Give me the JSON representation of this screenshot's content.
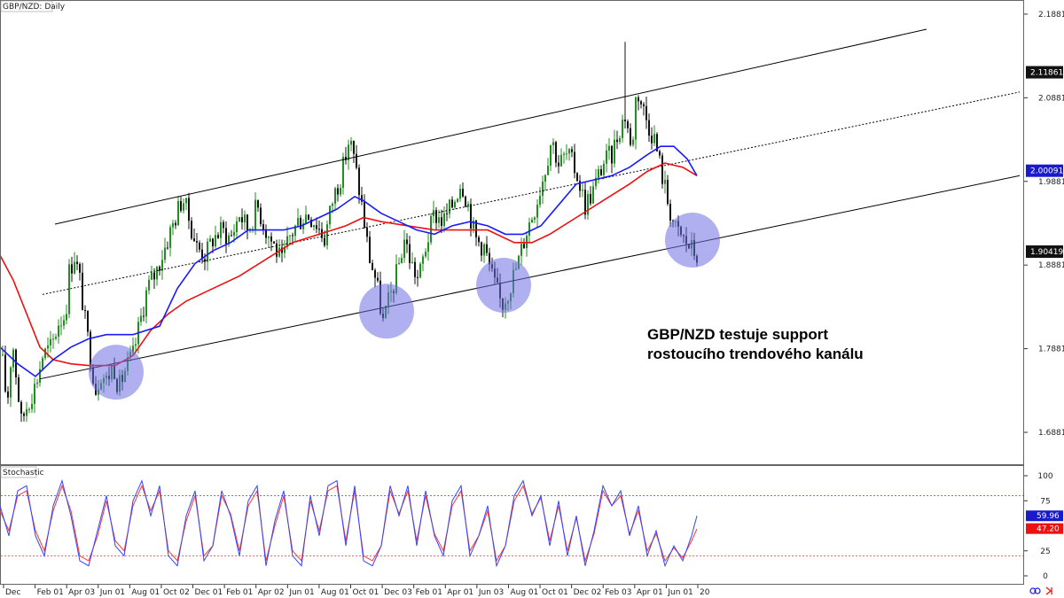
{
  "chart_data": {
    "type": "candlestick",
    "title": "GBP/NZD: Daily",
    "annotation": [
      "GBP/NZD testuje support",
      "rostoucího trendového kanálu"
    ],
    "colors": {
      "up": "#1f8f1f",
      "down": "#111111",
      "ma_fast": "#1a1aff",
      "ma_slow": "#ee1111",
      "channel": "#000000",
      "highlight": "#6f6fe6",
      "stoch_k": "#3344ff",
      "stoch_d": "#ff3333",
      "badge_blue": "#1a1acc",
      "badge_dark": "#111111",
      "badge_red": "#ee1111"
    },
    "x_axis": {
      "labels": [
        "Dec",
        "Feb 01",
        "Apr 03",
        "Jun 01",
        "Aug 01",
        "Oct 02",
        "Dec 01",
        "Feb 01",
        "Apr 02",
        "Jun 01",
        "Aug 01",
        "Oct 01",
        "Dec 03",
        "Feb 01",
        "Apr 01",
        "Jun 03",
        "Aug 01",
        "Oct 01",
        "Dec 02",
        "Feb 03",
        "Apr 01",
        "Jun 01",
        "20"
      ]
    },
    "price_axis": {
      "ylim": [
        1.65,
        2.205
      ],
      "ticks": [
        "2.18812",
        "2.08812",
        "1.98812",
        "1.88812",
        "1.78812",
        "1.68812"
      ]
    },
    "price_badges": [
      {
        "value": "2.11861",
        "price": 2.11861,
        "style": "dark"
      },
      {
        "value": "2.00091",
        "price": 2.00091,
        "style": "blue"
      },
      {
        "value": "1.90419",
        "price": 1.90419,
        "style": "dark"
      }
    ],
    "price_path": [
      [
        0,
        1.8
      ],
      [
        8,
        1.72
      ],
      [
        14,
        1.8
      ],
      [
        24,
        1.7
      ],
      [
        30,
        1.72
      ],
      [
        40,
        1.745
      ],
      [
        48,
        1.78
      ],
      [
        58,
        1.79
      ],
      [
        66,
        1.82
      ],
      [
        74,
        1.83
      ],
      [
        78,
        1.88
      ],
      [
        84,
        1.9
      ],
      [
        90,
        1.87
      ],
      [
        96,
        1.82
      ],
      [
        102,
        1.78
      ],
      [
        108,
        1.74
      ],
      [
        114,
        1.76
      ],
      [
        120,
        1.75
      ],
      [
        128,
        1.77
      ],
      [
        134,
        1.74
      ],
      [
        140,
        1.76
      ],
      [
        150,
        1.78
      ],
      [
        158,
        1.82
      ],
      [
        166,
        1.86
      ],
      [
        176,
        1.88
      ],
      [
        186,
        1.91
      ],
      [
        196,
        1.94
      ],
      [
        206,
        1.97
      ],
      [
        214,
        1.94
      ],
      [
        222,
        1.91
      ],
      [
        232,
        1.9
      ],
      [
        240,
        1.92
      ],
      [
        250,
        1.93
      ],
      [
        260,
        1.92
      ],
      [
        270,
        1.95
      ],
      [
        280,
        1.93
      ],
      [
        290,
        1.96
      ],
      [
        300,
        1.93
      ],
      [
        310,
        1.91
      ],
      [
        318,
        1.89
      ],
      [
        326,
        1.92
      ],
      [
        336,
        1.94
      ],
      [
        346,
        1.95
      ],
      [
        356,
        1.94
      ],
      [
        366,
        1.92
      ],
      [
        376,
        1.97
      ],
      [
        386,
        2.0
      ],
      [
        394,
        2.04
      ],
      [
        400,
        2.01
      ],
      [
        408,
        1.96
      ],
      [
        416,
        1.9
      ],
      [
        424,
        1.87
      ],
      [
        432,
        1.82
      ],
      [
        440,
        1.85
      ],
      [
        448,
        1.88
      ],
      [
        456,
        1.92
      ],
      [
        464,
        1.89
      ],
      [
        472,
        1.87
      ],
      [
        480,
        1.91
      ],
      [
        490,
        1.95
      ],
      [
        500,
        1.94
      ],
      [
        510,
        1.96
      ],
      [
        520,
        1.99
      ],
      [
        528,
        1.96
      ],
      [
        536,
        1.92
      ],
      [
        546,
        1.91
      ],
      [
        556,
        1.87
      ],
      [
        566,
        1.84
      ],
      [
        574,
        1.86
      ],
      [
        584,
        1.89
      ],
      [
        594,
        1.93
      ],
      [
        604,
        1.96
      ],
      [
        614,
        2.0
      ],
      [
        622,
        2.04
      ],
      [
        630,
        2.01
      ],
      [
        640,
        2.02
      ],
      [
        650,
        2.0
      ],
      [
        660,
        1.96
      ],
      [
        670,
        1.98
      ],
      [
        680,
        2.01
      ],
      [
        690,
        2.02
      ],
      [
        698,
        2.05
      ],
      [
        706,
        2.07
      ],
      [
        712,
        2.02
      ],
      [
        718,
        2.1
      ],
      [
        724,
        2.08
      ],
      [
        730,
        2.06
      ],
      [
        738,
        2.04
      ],
      [
        746,
        2.0
      ],
      [
        754,
        1.96
      ],
      [
        762,
        1.93
      ],
      [
        770,
        1.92
      ],
      [
        778,
        1.91
      ],
      [
        786,
        1.9
      ]
    ],
    "spike": {
      "x": 704,
      "high": 2.155
    },
    "ma_fast": [
      [
        0,
        1.79
      ],
      [
        20,
        1.77
      ],
      [
        40,
        1.755
      ],
      [
        60,
        1.775
      ],
      [
        80,
        1.79
      ],
      [
        100,
        1.8
      ],
      [
        120,
        1.805
      ],
      [
        150,
        1.805
      ],
      [
        180,
        1.815
      ],
      [
        200,
        1.86
      ],
      [
        220,
        1.89
      ],
      [
        240,
        1.905
      ],
      [
        260,
        1.915
      ],
      [
        280,
        1.93
      ],
      [
        300,
        1.93
      ],
      [
        320,
        1.93
      ],
      [
        340,
        1.935
      ],
      [
        360,
        1.945
      ],
      [
        380,
        1.955
      ],
      [
        400,
        1.97
      ],
      [
        410,
        1.965
      ],
      [
        430,
        1.95
      ],
      [
        450,
        1.94
      ],
      [
        470,
        1.93
      ],
      [
        490,
        1.925
      ],
      [
        510,
        1.935
      ],
      [
        530,
        1.94
      ],
      [
        550,
        1.935
      ],
      [
        570,
        1.925
      ],
      [
        590,
        1.925
      ],
      [
        610,
        1.935
      ],
      [
        630,
        1.96
      ],
      [
        650,
        1.985
      ],
      [
        670,
        1.99
      ],
      [
        690,
        1.995
      ],
      [
        710,
        2.005
      ],
      [
        730,
        2.02
      ],
      [
        745,
        2.03
      ],
      [
        760,
        2.03
      ],
      [
        775,
        2.015
      ],
      [
        786,
        1.995
      ]
    ],
    "ma_slow": [
      [
        0,
        1.9
      ],
      [
        15,
        1.87
      ],
      [
        30,
        1.83
      ],
      [
        45,
        1.79
      ],
      [
        60,
        1.775
      ],
      [
        80,
        1.77
      ],
      [
        100,
        1.768
      ],
      [
        130,
        1.768
      ],
      [
        150,
        1.78
      ],
      [
        170,
        1.81
      ],
      [
        190,
        1.83
      ],
      [
        210,
        1.845
      ],
      [
        240,
        1.86
      ],
      [
        270,
        1.875
      ],
      [
        300,
        1.895
      ],
      [
        330,
        1.915
      ],
      [
        360,
        1.925
      ],
      [
        390,
        1.935
      ],
      [
        410,
        1.945
      ],
      [
        430,
        1.94
      ],
      [
        460,
        1.935
      ],
      [
        490,
        1.93
      ],
      [
        520,
        1.93
      ],
      [
        550,
        1.93
      ],
      [
        580,
        1.915
      ],
      [
        600,
        1.915
      ],
      [
        620,
        1.925
      ],
      [
        650,
        1.945
      ],
      [
        680,
        1.965
      ],
      [
        710,
        1.985
      ],
      [
        730,
        2.0
      ],
      [
        750,
        2.01
      ],
      [
        770,
        2.005
      ],
      [
        786,
        1.995
      ]
    ],
    "channel": {
      "upper": [
        [
          62,
          1.937
        ],
        [
          1045,
          2.17
        ]
      ],
      "middle": [
        [
          48,
          1.853
        ],
        [
          1150,
          2.095
        ]
      ],
      "lower": [
        [
          45,
          1.752
        ],
        [
          1150,
          1.995
        ]
      ]
    },
    "highlights": [
      {
        "x": 131,
        "price": 1.76
      },
      {
        "x": 436,
        "price": 1.833
      },
      {
        "x": 568,
        "price": 1.864
      },
      {
        "x": 781,
        "price": 1.918
      }
    ],
    "stochastic": {
      "title": "Stochastic",
      "ylim": [
        0,
        100
      ],
      "ticks": [
        "100",
        "75",
        "25",
        "0"
      ],
      "levels": [
        80,
        20
      ],
      "values": {
        "k": "59.96",
        "d": "47.20"
      },
      "k_path": [
        [
          0,
          70
        ],
        [
          10,
          40
        ],
        [
          20,
          85
        ],
        [
          30,
          90
        ],
        [
          40,
          40
        ],
        [
          50,
          20
        ],
        [
          60,
          70
        ],
        [
          70,
          95
        ],
        [
          80,
          60
        ],
        [
          90,
          15
        ],
        [
          100,
          10
        ],
        [
          110,
          45
        ],
        [
          120,
          80
        ],
        [
          130,
          30
        ],
        [
          140,
          20
        ],
        [
          150,
          75
        ],
        [
          160,
          95
        ],
        [
          170,
          60
        ],
        [
          180,
          90
        ],
        [
          190,
          20
        ],
        [
          200,
          10
        ],
        [
          210,
          60
        ],
        [
          220,
          85
        ],
        [
          230,
          15
        ],
        [
          240,
          30
        ],
        [
          250,
          85
        ],
        [
          260,
          60
        ],
        [
          270,
          20
        ],
        [
          280,
          75
        ],
        [
          290,
          90
        ],
        [
          300,
          10
        ],
        [
          310,
          55
        ],
        [
          320,
          85
        ],
        [
          330,
          20
        ],
        [
          340,
          10
        ],
        [
          350,
          80
        ],
        [
          360,
          40
        ],
        [
          370,
          90
        ],
        [
          380,
          95
        ],
        [
          390,
          30
        ],
        [
          400,
          90
        ],
        [
          410,
          15
        ],
        [
          420,
          10
        ],
        [
          430,
          30
        ],
        [
          440,
          90
        ],
        [
          450,
          60
        ],
        [
          460,
          90
        ],
        [
          470,
          30
        ],
        [
          480,
          85
        ],
        [
          490,
          40
        ],
        [
          500,
          20
        ],
        [
          510,
          75
        ],
        [
          520,
          90
        ],
        [
          530,
          20
        ],
        [
          540,
          40
        ],
        [
          550,
          70
        ],
        [
          560,
          10
        ],
        [
          570,
          30
        ],
        [
          580,
          80
        ],
        [
          590,
          95
        ],
        [
          600,
          60
        ],
        [
          610,
          80
        ],
        [
          620,
          30
        ],
        [
          630,
          75
        ],
        [
          640,
          20
        ],
        [
          650,
          60
        ],
        [
          660,
          10
        ],
        [
          670,
          45
        ],
        [
          680,
          90
        ],
        [
          690,
          70
        ],
        [
          700,
          85
        ],
        [
          710,
          40
        ],
        [
          720,
          70
        ],
        [
          730,
          20
        ],
        [
          740,
          45
        ],
        [
          750,
          10
        ],
        [
          760,
          30
        ],
        [
          770,
          15
        ],
        [
          780,
          40
        ],
        [
          786,
          60
        ]
      ],
      "d_path": [
        [
          0,
          65
        ],
        [
          10,
          45
        ],
        [
          20,
          80
        ],
        [
          30,
          85
        ],
        [
          40,
          45
        ],
        [
          50,
          25
        ],
        [
          60,
          65
        ],
        [
          70,
          90
        ],
        [
          80,
          65
        ],
        [
          90,
          20
        ],
        [
          100,
          15
        ],
        [
          110,
          40
        ],
        [
          120,
          75
        ],
        [
          130,
          35
        ],
        [
          140,
          25
        ],
        [
          150,
          70
        ],
        [
          160,
          90
        ],
        [
          170,
          65
        ],
        [
          180,
          85
        ],
        [
          190,
          25
        ],
        [
          200,
          15
        ],
        [
          210,
          55
        ],
        [
          220,
          80
        ],
        [
          230,
          20
        ],
        [
          240,
          30
        ],
        [
          250,
          80
        ],
        [
          260,
          62
        ],
        [
          270,
          25
        ],
        [
          280,
          70
        ],
        [
          290,
          85
        ],
        [
          300,
          15
        ],
        [
          310,
          50
        ],
        [
          320,
          80
        ],
        [
          330,
          25
        ],
        [
          340,
          15
        ],
        [
          350,
          75
        ],
        [
          360,
          45
        ],
        [
          370,
          85
        ],
        [
          380,
          90
        ],
        [
          390,
          35
        ],
        [
          400,
          85
        ],
        [
          410,
          20
        ],
        [
          420,
          15
        ],
        [
          430,
          30
        ],
        [
          440,
          85
        ],
        [
          450,
          62
        ],
        [
          460,
          85
        ],
        [
          470,
          35
        ],
        [
          480,
          80
        ],
        [
          490,
          42
        ],
        [
          500,
          25
        ],
        [
          510,
          70
        ],
        [
          520,
          85
        ],
        [
          530,
          25
        ],
        [
          540,
          40
        ],
        [
          550,
          65
        ],
        [
          560,
          15
        ],
        [
          570,
          30
        ],
        [
          580,
          75
        ],
        [
          590,
          90
        ],
        [
          600,
          62
        ],
        [
          610,
          78
        ],
        [
          620,
          35
        ],
        [
          630,
          70
        ],
        [
          640,
          25
        ],
        [
          650,
          58
        ],
        [
          660,
          15
        ],
        [
          670,
          42
        ],
        [
          680,
          85
        ],
        [
          690,
          70
        ],
        [
          700,
          80
        ],
        [
          710,
          42
        ],
        [
          720,
          65
        ],
        [
          730,
          25
        ],
        [
          740,
          42
        ],
        [
          750,
          15
        ],
        [
          760,
          28
        ],
        [
          770,
          18
        ],
        [
          780,
          35
        ],
        [
          786,
          47
        ]
      ]
    }
  }
}
